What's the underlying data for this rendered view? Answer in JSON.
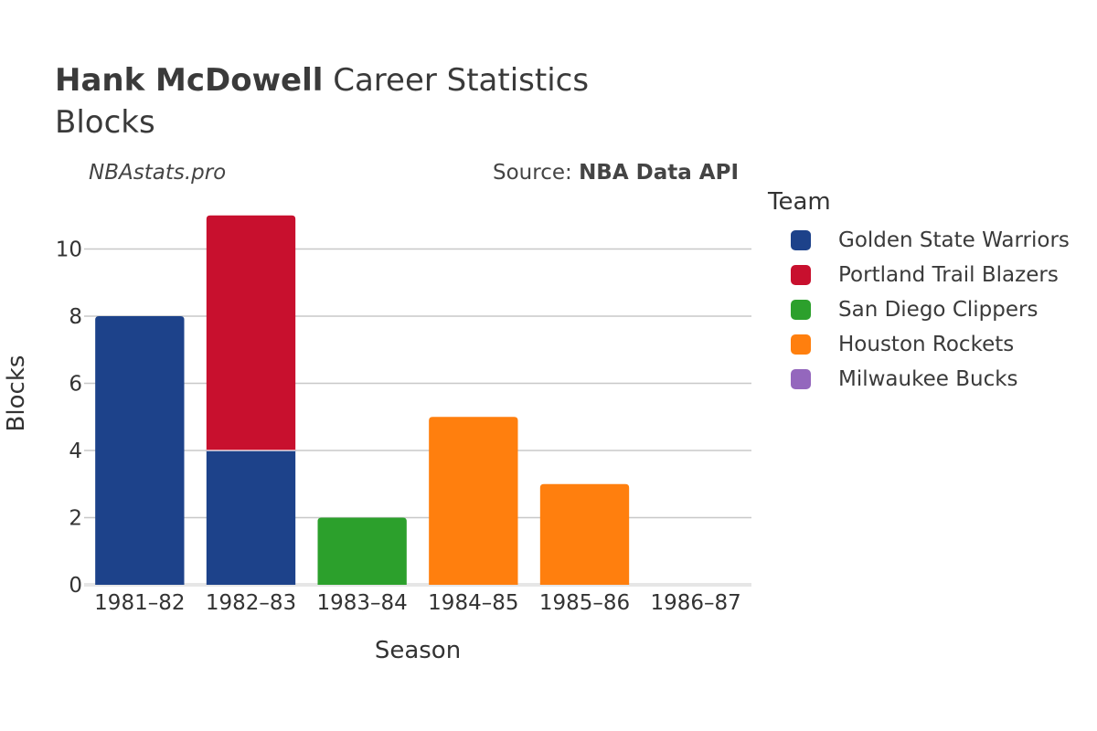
{
  "header": {
    "player_name": "Hank McDowell",
    "title_rest": " Career Statistics",
    "subtitle": "Blocks",
    "watermark": "NBAstats.pro",
    "source_prefix": "Source: ",
    "source_name": "NBA Data API"
  },
  "colors": {
    "Golden State Warriors": "#1d428a",
    "Portland Trail Blazers": "#c8102e",
    "San Diego Clippers": "#2ca02c",
    "Houston Rockets": "#ff7f0e",
    "Milwaukee Bucks": "#9467bd"
  },
  "chart_data": {
    "type": "bar",
    "stacked": true,
    "categories": [
      "1981–82",
      "1982–83",
      "1983–84",
      "1984–85",
      "1985–86",
      "1986–87"
    ],
    "series": [
      {
        "name": "Golden State Warriors",
        "values": [
          8,
          4,
          0,
          0,
          0,
          0
        ]
      },
      {
        "name": "Portland Trail Blazers",
        "values": [
          0,
          7,
          0,
          0,
          0,
          0
        ]
      },
      {
        "name": "San Diego Clippers",
        "values": [
          0,
          0,
          2,
          0,
          0,
          0
        ]
      },
      {
        "name": "Houston Rockets",
        "values": [
          0,
          0,
          0,
          5,
          3,
          0
        ]
      },
      {
        "name": "Milwaukee Bucks",
        "values": [
          0,
          0,
          0,
          0,
          0,
          0
        ]
      }
    ],
    "xlabel": "Season",
    "ylabel": "Blocks",
    "ylim": [
      0,
      11.4
    ],
    "yticks": [
      0,
      2,
      4,
      6,
      8,
      10
    ],
    "grid": true,
    "legend_title": "Team",
    "legend_position": "right"
  }
}
